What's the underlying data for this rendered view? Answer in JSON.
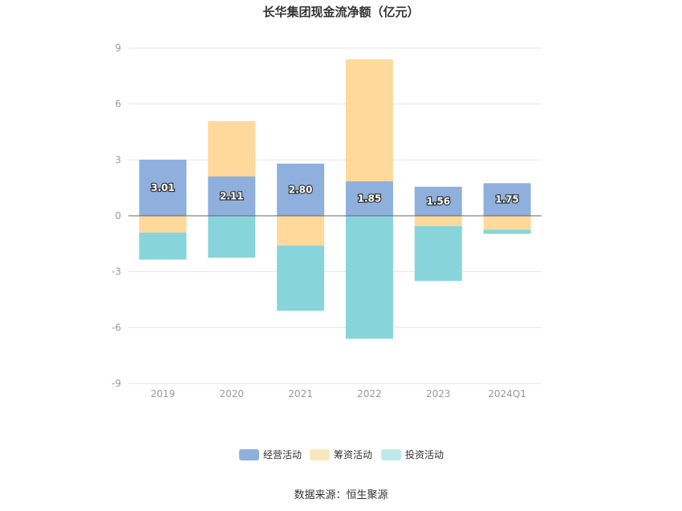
{
  "chart_data": {
    "type": "bar",
    "stacked": true,
    "title": "长华集团现金流净额（亿元）",
    "categories": [
      "2019",
      "2020",
      "2021",
      "2022",
      "2023",
      "2024Q1"
    ],
    "series": [
      {
        "name": "经营活动",
        "color": "#8fb0dd",
        "values": [
          3.01,
          2.11,
          2.8,
          1.85,
          1.56,
          1.75
        ],
        "labels": [
          "3.01",
          "2.11",
          "2.80",
          "1.85",
          "1.56",
          "1.75"
        ]
      },
      {
        "name": "筹资活动",
        "color": "#fed99b",
        "values": [
          -0.9,
          2.97,
          -1.6,
          6.55,
          -0.55,
          -0.75
        ]
      },
      {
        "name": "投资活动",
        "color": "#87d5db",
        "values": [
          -1.45,
          -2.25,
          -3.5,
          -6.6,
          -2.95,
          -0.22
        ]
      }
    ],
    "ylim": [
      -9,
      9
    ],
    "yticks": [
      "9",
      "6",
      "3",
      "0",
      "-3",
      "-6",
      "-9"
    ],
    "grid": true,
    "legend_position": "bottom",
    "legend_colors": [
      "#8fb0dd",
      "#fde6bd",
      "#bfe8eb"
    ]
  },
  "source": "数据来源：恒生聚源"
}
